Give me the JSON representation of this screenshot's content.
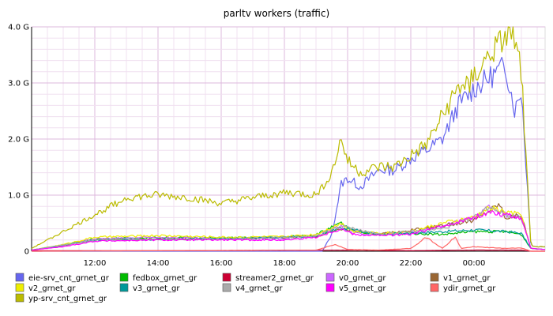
{
  "chart_data": {
    "type": "line",
    "title": "parltv workers (traffic)",
    "y_unit": "bytes/s",
    "ylim": [
      0,
      4.0
    ],
    "y_ticks": [
      {
        "value": 0,
        "label": "0"
      },
      {
        "value": 1.0,
        "label": "1.0 G"
      },
      {
        "value": 2.0,
        "label": "2.0 G"
      },
      {
        "value": 3.0,
        "label": "3.0 G"
      },
      {
        "value": 4.0,
        "label": "4.0 G"
      }
    ],
    "x_range": [
      10.0,
      26.25
    ],
    "x_ticks": [
      {
        "value": 12,
        "label": "12:00"
      },
      {
        "value": 14,
        "label": "14:00"
      },
      {
        "value": 16,
        "label": "16:00"
      },
      {
        "value": 18,
        "label": "18:00"
      },
      {
        "value": 20,
        "label": "20:00"
      },
      {
        "value": 22,
        "label": "22:00"
      },
      {
        "value": 24,
        "label": "00:00"
      }
    ],
    "grid": true,
    "legend_position": "bottom",
    "series": [
      {
        "name": "eie-srv_cnt_grnet_gr",
        "color": "#6666ee",
        "x": [
          10.0,
          19.2,
          19.5,
          19.8,
          20.0,
          20.4,
          21.0,
          21.5,
          22.0,
          22.5,
          23.0,
          23.5,
          24.0,
          24.5,
          25.0,
          25.3,
          25.5,
          25.8,
          26.0,
          26.25
        ],
        "values": [
          0.0,
          0.0,
          0.3,
          1.2,
          1.3,
          1.15,
          1.45,
          1.45,
          1.65,
          1.8,
          2.0,
          2.6,
          2.9,
          3.1,
          3.3,
          2.5,
          2.9,
          0.1,
          0.08,
          0.08
        ]
      },
      {
        "name": "fedbox_grnet_gr",
        "color": "#00bb00",
        "x": [
          10.0,
          11.0,
          12.0,
          14.0,
          16.0,
          18.0,
          19.0,
          19.8,
          20.2,
          21.0,
          22.0,
          23.0,
          24.0,
          25.0,
          25.5,
          25.8,
          26.25
        ],
        "values": [
          0.02,
          0.1,
          0.22,
          0.24,
          0.24,
          0.25,
          0.3,
          0.5,
          0.35,
          0.3,
          0.32,
          0.3,
          0.35,
          0.35,
          0.3,
          0.05,
          0.03
        ]
      },
      {
        "name": "streamer2_grnet_gr",
        "color": "#cc0033",
        "x": [
          10.0,
          15.0,
          20.0,
          22.0,
          24.0,
          25.0,
          25.5,
          25.8,
          26.25
        ],
        "values": [
          0.01,
          0.01,
          0.02,
          0.01,
          0.02,
          0.02,
          0.02,
          0.0,
          0.0
        ]
      },
      {
        "name": "v0_grnet_gr",
        "color": "#cc66ff",
        "x": [
          10.0,
          11.0,
          12.0,
          14.0,
          16.0,
          18.0,
          19.0,
          19.8,
          20.2,
          21.0,
          22.0,
          23.0,
          24.0,
          24.5,
          25.0,
          25.5,
          25.8,
          26.25
        ],
        "values": [
          0.02,
          0.1,
          0.22,
          0.25,
          0.22,
          0.22,
          0.28,
          0.45,
          0.32,
          0.3,
          0.32,
          0.45,
          0.6,
          0.8,
          0.65,
          0.6,
          0.05,
          0.03
        ]
      },
      {
        "name": "v1_grnet_gr",
        "color": "#996633",
        "x": [
          10.0,
          12.0,
          16.0,
          19.0,
          19.8,
          21.0,
          23.0,
          24.0,
          24.8,
          25.0,
          25.5,
          25.8,
          26.25
        ],
        "values": [
          0.02,
          0.2,
          0.22,
          0.26,
          0.4,
          0.3,
          0.45,
          0.55,
          0.85,
          0.6,
          0.65,
          0.05,
          0.03
        ]
      },
      {
        "name": "v2_grnet_gr",
        "color": "#eeee00",
        "x": [
          10.0,
          11.0,
          12.0,
          14.0,
          16.0,
          18.0,
          19.0,
          19.8,
          20.2,
          21.0,
          22.0,
          23.0,
          24.0,
          24.5,
          25.0,
          25.5,
          25.8,
          26.25
        ],
        "values": [
          0.02,
          0.12,
          0.25,
          0.28,
          0.25,
          0.26,
          0.3,
          0.5,
          0.35,
          0.32,
          0.35,
          0.5,
          0.6,
          0.78,
          0.7,
          0.65,
          0.05,
          0.03
        ]
      },
      {
        "name": "v3_grnet_gr",
        "color": "#009999",
        "x": [
          10.0,
          12.0,
          16.0,
          19.0,
          19.8,
          21.0,
          23.0,
          24.0,
          25.0,
          25.5,
          25.8,
          26.25
        ],
        "values": [
          0.02,
          0.2,
          0.22,
          0.26,
          0.42,
          0.3,
          0.35,
          0.38,
          0.35,
          0.32,
          0.05,
          0.03
        ]
      },
      {
        "name": "v4_grnet_gr",
        "color": "#aaaaaa",
        "x": [
          10.0,
          12.0,
          16.0,
          19.0,
          19.8,
          21.0,
          23.0,
          24.0,
          24.5,
          25.0,
          25.5,
          25.8,
          26.25
        ],
        "values": [
          0.02,
          0.2,
          0.22,
          0.26,
          0.45,
          0.3,
          0.4,
          0.6,
          0.8,
          0.65,
          0.6,
          0.05,
          0.03
        ]
      },
      {
        "name": "v5_grnet_gr",
        "color": "#ff00ff",
        "x": [
          10.0,
          11.0,
          12.0,
          14.0,
          16.0,
          18.0,
          19.0,
          19.8,
          20.2,
          21.0,
          22.0,
          23.0,
          24.0,
          24.5,
          25.0,
          25.5,
          25.8,
          26.25
        ],
        "values": [
          0.02,
          0.08,
          0.18,
          0.2,
          0.2,
          0.2,
          0.25,
          0.4,
          0.3,
          0.28,
          0.3,
          0.45,
          0.6,
          0.7,
          0.65,
          0.6,
          0.05,
          0.03
        ]
      },
      {
        "name": "ydir_grnet_gr",
        "color": "#ff6666",
        "x": [
          10.0,
          19.0,
          19.6,
          20.0,
          21.0,
          22.0,
          22.5,
          23.0,
          23.4,
          23.6,
          24.0,
          25.0,
          25.5,
          25.8,
          26.25
        ],
        "values": [
          0.0,
          0.02,
          0.12,
          0.03,
          0.02,
          0.05,
          0.25,
          0.05,
          0.25,
          0.05,
          0.08,
          0.05,
          0.06,
          0.0,
          0.0
        ]
      },
      {
        "name": "yp-srv_cnt_grnet_gr",
        "color": "#bbbb00",
        "x": [
          10.0,
          11.0,
          12.0,
          13.0,
          14.0,
          15.0,
          16.0,
          17.0,
          18.0,
          19.0,
          19.5,
          19.8,
          20.0,
          20.4,
          21.0,
          21.5,
          22.0,
          22.5,
          23.0,
          23.5,
          24.0,
          24.5,
          25.0,
          25.2,
          25.5,
          25.8,
          26.0,
          26.25
        ],
        "values": [
          0.05,
          0.35,
          0.65,
          0.95,
          1.0,
          0.95,
          0.85,
          0.95,
          1.05,
          1.0,
          1.4,
          2.0,
          1.6,
          1.4,
          1.5,
          1.5,
          1.7,
          1.9,
          2.4,
          2.9,
          3.1,
          3.5,
          3.8,
          3.9,
          3.2,
          0.1,
          0.08,
          0.08
        ]
      }
    ]
  }
}
